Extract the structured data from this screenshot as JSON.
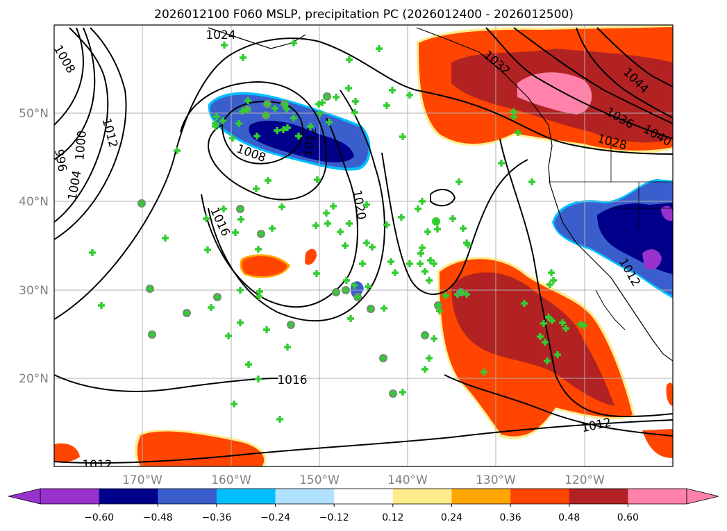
{
  "title": "2026012100 F060 MSLP, precipitation PC (2026012400 - 2026012500)",
  "lon_ticks": [
    "170°W",
    "160°W",
    "150°W",
    "140°W",
    "130°W",
    "120°W"
  ],
  "lat_ticks": [
    "50°N",
    "40°N",
    "30°N",
    "20°N"
  ],
  "isobar_labels": [
    "1024",
    "1008",
    "1012",
    "1000",
    "1004",
    "996",
    "1008",
    "1016",
    "1012",
    "1020",
    "1012",
    "1016",
    "1012",
    "1032",
    "1044",
    "1036",
    "1040",
    "1028",
    "1012"
  ],
  "colorbar": {
    "ticks": [
      "−0.60",
      "−0.48",
      "−0.36",
      "−0.24",
      "−0.12",
      "0.12",
      "0.24",
      "0.36",
      "0.48",
      "0.60"
    ],
    "colors": [
      "#9932cc",
      "#00008b",
      "#3a5fcd",
      "#00bfff",
      "#b0e2ff",
      "#ffffff",
      "#ffec8b",
      "#ffa500",
      "#ff4500",
      "#b22222",
      "#ff82ab"
    ]
  },
  "colors": {
    "isobar": "#000000",
    "station_fill": "#32cd32",
    "station_outline": "#808080",
    "gridline": "#b0b0b0"
  }
}
